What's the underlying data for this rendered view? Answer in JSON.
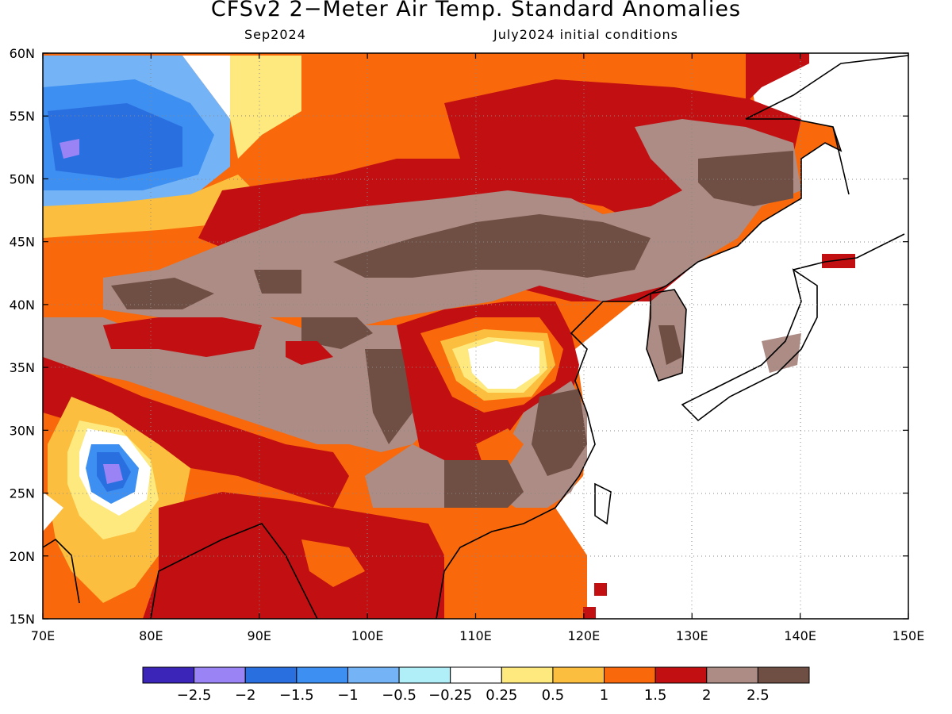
{
  "title": "CFSv2 2−Meter Air Temp. Standard Anomalies",
  "subtitle_left": "Sep2024",
  "subtitle_right": "July2024 initial conditions",
  "map": {
    "lon_range": [
      70,
      150
    ],
    "lat_range": [
      15,
      60
    ],
    "lon_ticks": [
      "70E",
      "80E",
      "90E",
      "100E",
      "110E",
      "120E",
      "130E",
      "140E",
      "150E"
    ],
    "lat_ticks": [
      "60N",
      "55N",
      "50N",
      "45N",
      "40N",
      "35N",
      "30N",
      "25N",
      "20N",
      "15N"
    ],
    "gridlines": true
  },
  "colorbar": {
    "colors": [
      "#3b25b8",
      "#9a84f5",
      "#2a6fe0",
      "#3d8ff2",
      "#74b4f6",
      "#b0eef8",
      "#ffffff",
      "#fee97f",
      "#fcbe3e",
      "#f9690b",
      "#c20f12",
      "#ac8c84",
      "#6f4e44"
    ],
    "labels": [
      "−2.5",
      "−2",
      "−1.5",
      "−1",
      "−0.5",
      "−0.25",
      "0.25",
      "0.5",
      "1",
      "1.5",
      "2",
      "2.5"
    ]
  },
  "anomaly_regions": [
    {
      "name": "west-siberia-cold",
      "value": -1.5,
      "color": "#2a6fe0"
    },
    {
      "name": "south-asia-cold",
      "value": -1.5,
      "color": "#2a6fe0"
    },
    {
      "name": "mongolia-north-china-warm",
      "value": 2.5,
      "color": "#6f4e44"
    },
    {
      "name": "tibet-warm",
      "value": 2.0,
      "color": "#ac8c84"
    },
    {
      "name": "central-china-near-normal",
      "value": 0.0,
      "color": "#ffffff"
    },
    {
      "name": "southeast-china-warm",
      "value": 2.5,
      "color": "#6f4e44"
    },
    {
      "name": "manchuria-warm",
      "value": 2.5,
      "color": "#6f4e44"
    },
    {
      "name": "siberia-warm",
      "value": 1.5,
      "color": "#f9690b"
    }
  ]
}
